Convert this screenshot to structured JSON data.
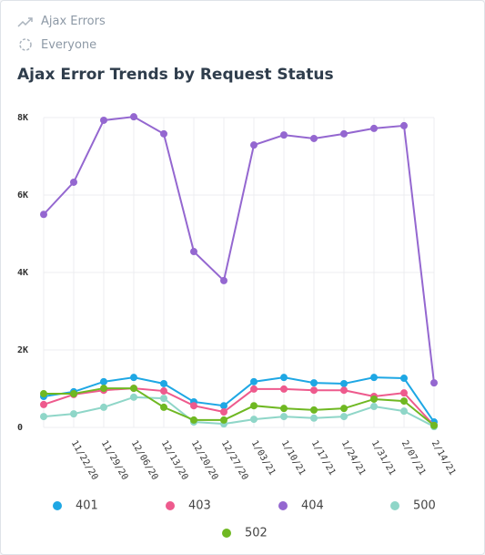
{
  "header": {
    "dataset": "Ajax Errors",
    "segment": "Everyone"
  },
  "chart_data": {
    "type": "line",
    "title": "Ajax Error Trends by Request Status",
    "categories": [
      null,
      "11/22/20",
      "11/29/20",
      "12/06/20",
      "12/13/20",
      "12/20/20",
      "12/27/20",
      "1/03/21",
      "1/10/21",
      "1/17/21",
      "1/24/21",
      "1/31/21",
      "2/07/21",
      "2/14/21"
    ],
    "series": [
      {
        "name": "401",
        "color": "#1ea7e4",
        "values": [
          800,
          920,
          1180,
          1290,
          1130,
          660,
          560,
          1180,
          1290,
          1150,
          1130,
          1290,
          1270,
          140
        ]
      },
      {
        "name": "403",
        "color": "#ee5a8d",
        "values": [
          590,
          850,
          960,
          1010,
          940,
          560,
          400,
          990,
          990,
          960,
          960,
          800,
          890,
          50
        ]
      },
      {
        "name": "404",
        "color": "#9467d0",
        "values": [
          5500,
          6330,
          7930,
          8020,
          7580,
          4540,
          3790,
          7290,
          7550,
          7460,
          7580,
          7720,
          7790,
          1150
        ]
      },
      {
        "name": "500",
        "color": "#8fd6c8",
        "values": [
          280,
          350,
          520,
          780,
          750,
          140,
          90,
          210,
          280,
          240,
          280,
          540,
          420,
          20
        ]
      },
      {
        "name": "502",
        "color": "#6fb822",
        "values": [
          870,
          870,
          1010,
          1010,
          520,
          190,
          190,
          560,
          490,
          450,
          490,
          730,
          680,
          50
        ]
      }
    ],
    "ylim": [
      0,
      8000
    ],
    "yticks": [
      0,
      {
        "value": 2000,
        "label": "2K"
      },
      {
        "value": 4000,
        "label": "4K"
      },
      {
        "value": 6000,
        "label": "6K"
      },
      {
        "value": 8000,
        "label": "8K"
      }
    ],
    "grid": true,
    "legend": "bottom"
  }
}
